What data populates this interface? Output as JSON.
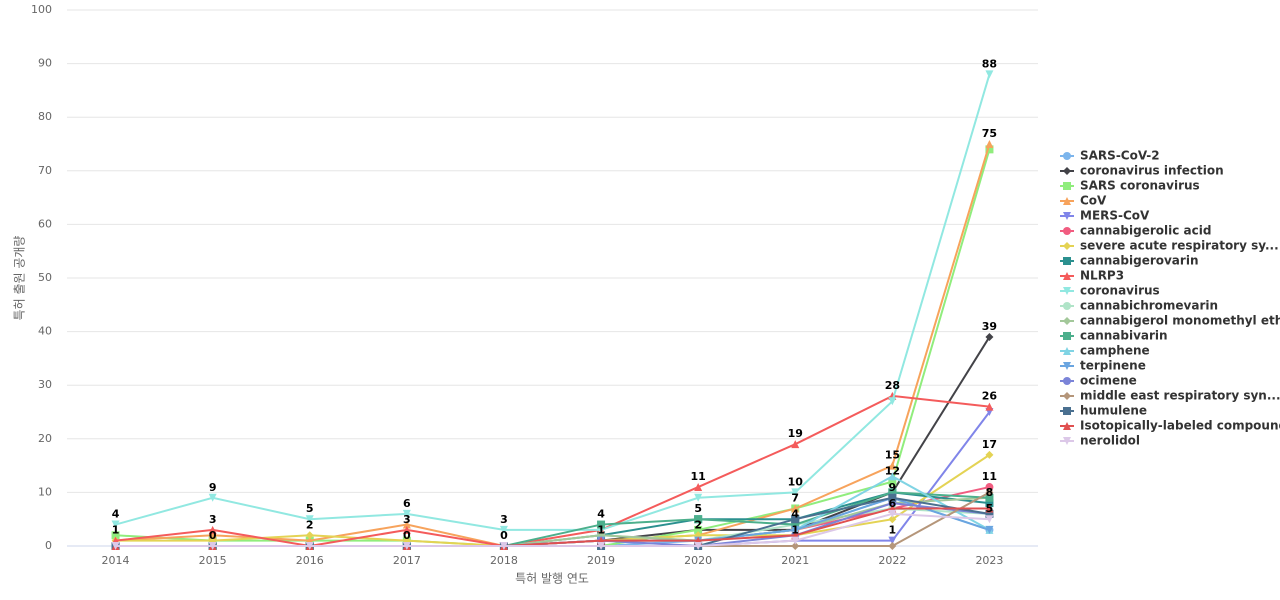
{
  "chart_data": {
    "type": "line",
    "x_label": "특허 발행 연도",
    "y_label": "특허 출원 공개량",
    "categories": [
      "2014",
      "2015",
      "2016",
      "2017",
      "2018",
      "2019",
      "2020",
      "2021",
      "2022",
      "2023"
    ],
    "ylim": [
      0,
      100
    ],
    "yticks": [
      0,
      10,
      20,
      30,
      40,
      50,
      60,
      70,
      80,
      90,
      100
    ],
    "grid": true,
    "legend": "right",
    "series": [
      {
        "name": "SARS-CoV-2",
        "color": "#7cb5ec",
        "values": [
          0,
          0,
          0,
          0,
          0,
          0,
          1,
          3,
          9,
          3
        ]
      },
      {
        "name": "coronavirus infection",
        "color": "#434348",
        "values": [
          0,
          0,
          0,
          0,
          0,
          1,
          3,
          3,
          10,
          39
        ]
      },
      {
        "name": "SARS coronavirus",
        "color": "#90ed7d",
        "values": [
          2,
          1,
          1,
          1,
          0,
          0,
          3,
          7,
          12,
          74
        ]
      },
      {
        "name": "CoV",
        "color": "#f7a35c",
        "values": [
          1,
          2,
          1,
          4,
          0,
          1,
          2,
          7,
          15,
          75
        ]
      },
      {
        "name": "MERS-CoV",
        "color": "#8085e9",
        "values": [
          0,
          0,
          0,
          0,
          0,
          0,
          0,
          1,
          1,
          25
        ]
      },
      {
        "name": "cannabigerolic acid",
        "color": "#f15c80",
        "values": [
          0,
          0,
          0,
          0,
          0,
          1,
          1,
          3,
          7,
          11
        ]
      },
      {
        "name": "severe acute respiratory sy...",
        "color": "#e4d354",
        "values": [
          1,
          1,
          2,
          1,
          0,
          1,
          2,
          2,
          5,
          17
        ]
      },
      {
        "name": "cannabigerovarin",
        "color": "#2b908f",
        "values": [
          0,
          0,
          0,
          0,
          0,
          2,
          5,
          5,
          10,
          8
        ]
      },
      {
        "name": "NLRP3",
        "color": "#f45b5b",
        "values": [
          1,
          3,
          0,
          3,
          0,
          3,
          11,
          19,
          28,
          26
        ]
      },
      {
        "name": "coronavirus",
        "color": "#91e8e1",
        "values": [
          4,
          9,
          5,
          6,
          3,
          3,
          9,
          10,
          27,
          88
        ]
      },
      {
        "name": "cannabichromevarin",
        "color": "#b0e4c8",
        "values": [
          0,
          0,
          0,
          0,
          0,
          2,
          1,
          4,
          7,
          6
        ]
      },
      {
        "name": "cannabigerol monomethyl ether",
        "color": "#a3c89a",
        "values": [
          0,
          0,
          0,
          0,
          0,
          2,
          1,
          3,
          8,
          9
        ]
      },
      {
        "name": "cannabivarin",
        "color": "#4caf8c",
        "values": [
          0,
          0,
          0,
          0,
          0,
          4,
          5,
          4,
          10,
          9
        ]
      },
      {
        "name": "camphene",
        "color": "#80d4e4",
        "values": [
          0,
          0,
          0,
          0,
          0,
          1,
          1,
          3,
          13,
          3
        ]
      },
      {
        "name": "terpinene",
        "color": "#6aa5e0",
        "values": [
          0,
          0,
          0,
          0,
          0,
          1,
          1,
          3,
          9,
          3
        ]
      },
      {
        "name": "ocimene",
        "color": "#7b84d8",
        "values": [
          0,
          0,
          0,
          0,
          0,
          1,
          0,
          2,
          8,
          6
        ]
      },
      {
        "name": "middle east respiratory syn...",
        "color": "#b5967a",
        "values": [
          0,
          0,
          0,
          0,
          0,
          0,
          0,
          0,
          0,
          10
        ]
      },
      {
        "name": "humulene",
        "color": "#4a7090",
        "values": [
          0,
          0,
          0,
          0,
          0,
          0,
          0,
          5,
          9,
          6
        ]
      },
      {
        "name": "Isotopically-labeled compound",
        "color": "#e05050",
        "values": [
          0,
          0,
          0,
          0,
          0,
          1,
          1,
          2,
          7,
          7
        ]
      },
      {
        "name": "nerolidol",
        "color": "#dcc8e8",
        "values": [
          0,
          0,
          0,
          0,
          0,
          0,
          0,
          1,
          6,
          5
        ]
      }
    ]
  }
}
